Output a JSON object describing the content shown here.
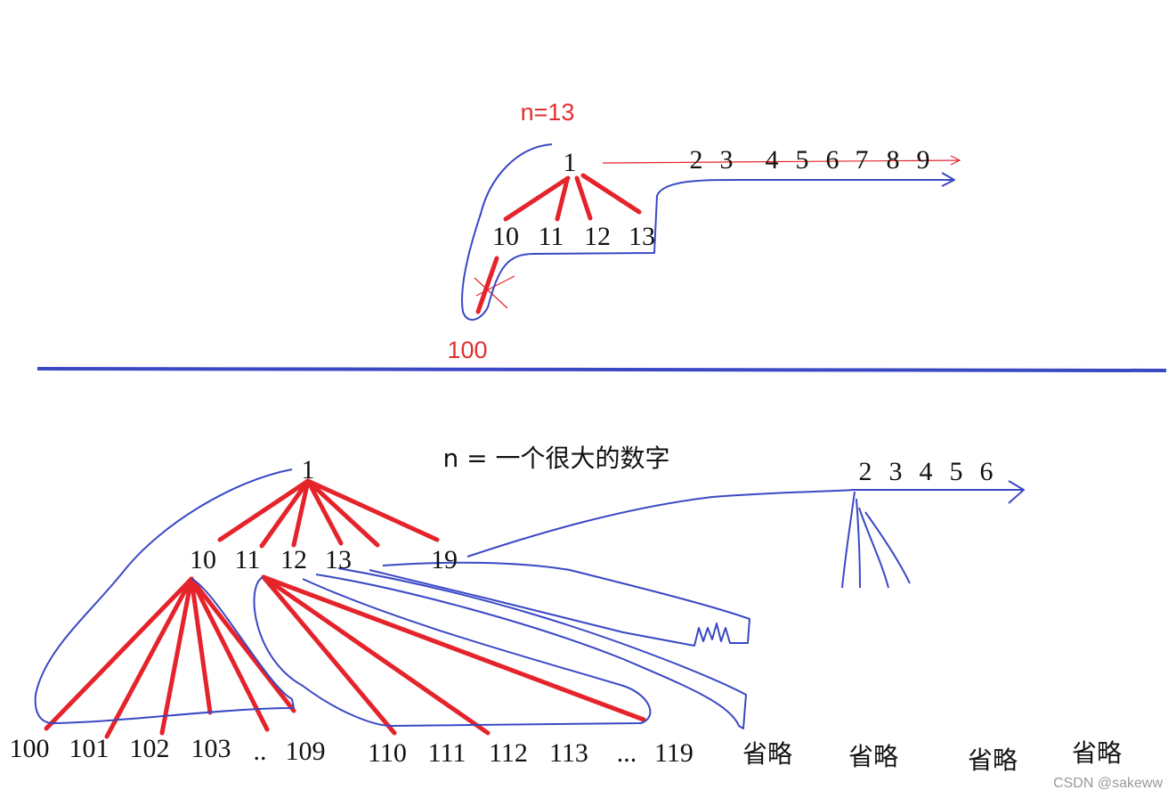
{
  "top": {
    "n_label": "n=13",
    "root": "1",
    "siblings": [
      "2",
      "3",
      "4",
      "5",
      "6",
      "7",
      "8",
      "9"
    ],
    "children": [
      "10",
      "11",
      "12",
      "13"
    ],
    "grandchild": "100"
  },
  "bottom": {
    "n_label": "n = 一个很大的数字",
    "root": "1",
    "children": [
      "10",
      "11",
      "12",
      "13",
      "19"
    ],
    "siblings": [
      "2",
      "3",
      "4",
      "5",
      "6"
    ],
    "leaves_10": [
      "100",
      "101",
      "102",
      "103",
      "..",
      "109"
    ],
    "leaves_11": [
      "110",
      "111",
      "112",
      "113",
      "...",
      "119"
    ],
    "omitted": [
      "省略",
      "省略",
      "省略",
      "省略"
    ]
  },
  "watermark": "CSDN @sakeww"
}
